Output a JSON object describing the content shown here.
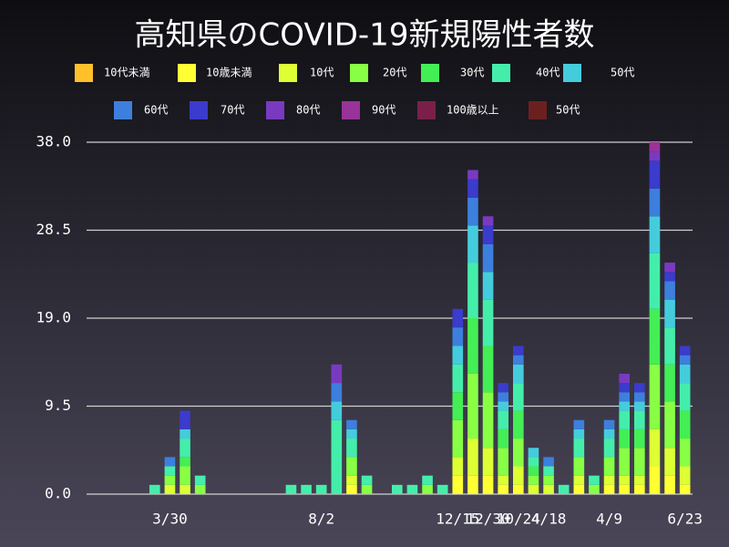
{
  "chart_data": {
    "type": "stacked-bar",
    "title": "高知県のCOVID-19新規陽性者数",
    "categories": [
      null,
      null,
      null,
      null,
      null,
      "3/30",
      null,
      null,
      null,
      null,
      null,
      null,
      null,
      null,
      null,
      "8/2",
      null,
      null,
      null,
      null,
      null,
      null,
      null,
      null,
      "12/15",
      null,
      "12/30",
      null,
      "10/24",
      null,
      "4/18",
      null,
      null,
      null,
      "4/9",
      null,
      null,
      null,
      null,
      "6/23"
    ],
    "ylim": [
      0,
      38
    ],
    "yticks": [
      {
        "value": 0,
        "label": "0.0"
      },
      {
        "value": 9.5,
        "label": "9.5"
      },
      {
        "value": 19,
        "label": "19.0"
      },
      {
        "value": 28.5,
        "label": "28.5"
      },
      {
        "value": 38,
        "label": "38.0"
      }
    ],
    "grid": true,
    "series": [
      {
        "name": "10代未満",
        "color": "#ffc02a",
        "values": [
          0,
          0,
          0,
          0,
          0,
          0,
          0,
          0,
          0,
          0,
          0,
          0,
          0,
          0,
          0,
          0,
          0,
          0,
          0,
          0,
          0,
          0,
          0,
          0,
          0,
          0,
          0,
          0,
          0,
          0,
          0,
          0,
          0,
          0,
          0,
          0,
          0,
          0,
          0,
          0
        ]
      },
      {
        "name": "10歳未満",
        "color": "#ffff33",
        "values": [
          0,
          0,
          0,
          0,
          0,
          0,
          0,
          0,
          0,
          0,
          0,
          0,
          0,
          0,
          0,
          0,
          0,
          1,
          0,
          0,
          0,
          0,
          0,
          0,
          2,
          2,
          2,
          1,
          1,
          0,
          0,
          0,
          1,
          0,
          1,
          1,
          1,
          3,
          2,
          1
        ]
      },
      {
        "name": "10代",
        "color": "#ddff33",
        "values": [
          0,
          0,
          0,
          0,
          0,
          1,
          1,
          0,
          0,
          0,
          0,
          0,
          0,
          0,
          0,
          0,
          0,
          1,
          0,
          0,
          0,
          0,
          0,
          0,
          2,
          4,
          3,
          1,
          2,
          1,
          1,
          0,
          1,
          0,
          1,
          1,
          1,
          4,
          3,
          2
        ]
      },
      {
        "name": "20代",
        "color": "#88ff44",
        "values": [
          0,
          0,
          0,
          0,
          0,
          1,
          2,
          1,
          0,
          0,
          0,
          0,
          0,
          0,
          0,
          0,
          0,
          2,
          1,
          0,
          0,
          0,
          1,
          0,
          4,
          7,
          6,
          3,
          3,
          1,
          1,
          0,
          2,
          1,
          2,
          3,
          3,
          7,
          5,
          3
        ]
      },
      {
        "name": "30代",
        "color": "#44ee55",
        "values": [
          0,
          0,
          0,
          0,
          0,
          0,
          1,
          0,
          0,
          0,
          0,
          0,
          0,
          0,
          0,
          0,
          0,
          0,
          0,
          0,
          0,
          0,
          0,
          0,
          3,
          6,
          5,
          2,
          3,
          1,
          0,
          0,
          0,
          0,
          0,
          2,
          2,
          6,
          4,
          3
        ]
      },
      {
        "name": "40代",
        "color": "#44eeaa",
        "values": [
          0,
          0,
          0,
          0,
          1,
          1,
          2,
          1,
          0,
          0,
          0,
          0,
          0,
          1,
          1,
          1,
          8,
          2,
          1,
          0,
          1,
          1,
          1,
          1,
          3,
          6,
          5,
          2,
          3,
          1,
          1,
          1,
          2,
          1,
          2,
          2,
          2,
          6,
          4,
          3
        ]
      },
      {
        "name": "50代",
        "color": "#44ccdd",
        "values": [
          0,
          0,
          0,
          0,
          0,
          0,
          1,
          0,
          0,
          0,
          0,
          0,
          0,
          0,
          0,
          0,
          2,
          1,
          0,
          0,
          0,
          0,
          0,
          0,
          2,
          4,
          3,
          1,
          2,
          1,
          0,
          0,
          1,
          0,
          1,
          1,
          1,
          4,
          3,
          2
        ]
      },
      {
        "name": "60代",
        "color": "#3d7fdd",
        "values": [
          0,
          0,
          0,
          0,
          0,
          1,
          0,
          0,
          0,
          0,
          0,
          0,
          0,
          0,
          0,
          0,
          2,
          1,
          0,
          0,
          0,
          0,
          0,
          0,
          2,
          3,
          3,
          1,
          1,
          0,
          1,
          0,
          1,
          0,
          1,
          1,
          1,
          3,
          2,
          1
        ]
      },
      {
        "name": "70代",
        "color": "#3b3bcc",
        "values": [
          0,
          0,
          0,
          0,
          0,
          0,
          2,
          0,
          0,
          0,
          0,
          0,
          0,
          0,
          0,
          0,
          0,
          0,
          0,
          0,
          0,
          0,
          0,
          0,
          2,
          2,
          2,
          1,
          1,
          0,
          0,
          0,
          0,
          0,
          0,
          1,
          1,
          3,
          1,
          1
        ]
      },
      {
        "name": "80代",
        "color": "#7a3ac0",
        "values": [
          0,
          0,
          0,
          0,
          0,
          0,
          0,
          0,
          0,
          0,
          0,
          0,
          0,
          0,
          0,
          0,
          2,
          0,
          0,
          0,
          0,
          0,
          0,
          0,
          0,
          1,
          1,
          0,
          0,
          0,
          0,
          0,
          0,
          0,
          0,
          1,
          0,
          1,
          1,
          0
        ]
      },
      {
        "name": "90代",
        "color": "#993399",
        "values": [
          0,
          0,
          0,
          0,
          0,
          0,
          0,
          0,
          0,
          0,
          0,
          0,
          0,
          0,
          0,
          0,
          0,
          0,
          0,
          0,
          0,
          0,
          0,
          0,
          0,
          0,
          0,
          0,
          0,
          0,
          0,
          0,
          0,
          0,
          0,
          0,
          0,
          1,
          0,
          0
        ]
      },
      {
        "name": "100歳以上",
        "color": "#7a2048",
        "values": [
          0,
          0,
          0,
          0,
          0,
          0,
          0,
          0,
          0,
          0,
          0,
          0,
          0,
          0,
          0,
          0,
          0,
          0,
          0,
          0,
          0,
          0,
          0,
          0,
          0,
          0,
          0,
          0,
          0,
          0,
          0,
          0,
          0,
          0,
          0,
          0,
          0,
          0,
          0,
          0
        ]
      },
      {
        "name": "50代",
        "color": "#6b2020",
        "values": [
          0,
          0,
          0,
          0,
          0,
          0,
          0,
          0,
          0,
          0,
          0,
          0,
          0,
          0,
          0,
          0,
          0,
          0,
          0,
          0,
          0,
          0,
          0,
          0,
          0,
          0,
          0,
          0,
          0,
          0,
          0,
          0,
          0,
          0,
          0,
          0,
          0,
          0,
          0,
          0
        ]
      }
    ]
  }
}
